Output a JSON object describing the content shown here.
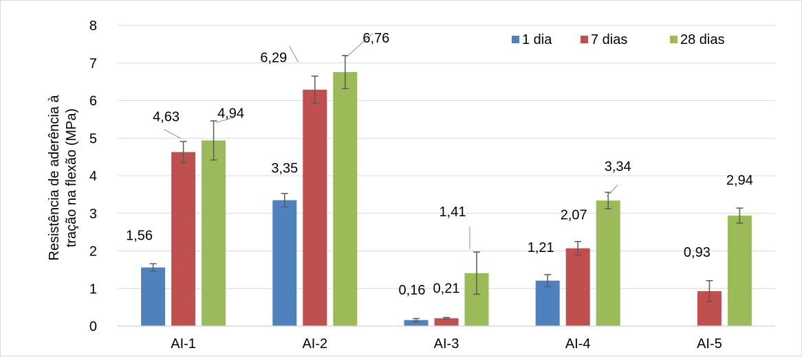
{
  "chart_data": {
    "type": "bar",
    "categories": [
      "AI-1",
      "AI-2",
      "AI-3",
      "AI-4",
      "AI-5"
    ],
    "series": [
      {
        "name": "1 dia",
        "color": "#4f81bd",
        "values": [
          1.56,
          3.35,
          0.16,
          1.21,
          null
        ],
        "labels": [
          "1,56",
          "3,35",
          "0,16",
          "1,21",
          ""
        ],
        "errors": [
          0.1,
          0.18,
          0.04,
          0.16,
          null
        ]
      },
      {
        "name": "7 dias",
        "color": "#c0504d",
        "values": [
          4.63,
          6.29,
          0.21,
          2.07,
          0.93
        ],
        "labels": [
          "4,63",
          "6,29",
          "0,21",
          "2,07",
          "0,93"
        ],
        "errors": [
          0.28,
          0.36,
          0.02,
          0.18,
          0.28
        ]
      },
      {
        "name": "28 dias",
        "color": "#9bbb59",
        "values": [
          4.94,
          6.76,
          1.41,
          3.34,
          2.94
        ],
        "labels": [
          "4,94",
          "6,76",
          "1,41",
          "3,34",
          "2,94"
        ],
        "errors": [
          0.52,
          0.44,
          0.56,
          0.22,
          0.2
        ]
      }
    ],
    "ylabel_line1": "Resistência de aderência à",
    "ylabel_line2": "tração na flexão (MPa)",
    "ylim": [
      0,
      8
    ],
    "yticks": [
      "0",
      "1",
      "2",
      "3",
      "4",
      "5",
      "6",
      "7",
      "8"
    ],
    "grid": true,
    "legend_position": "top-right"
  }
}
